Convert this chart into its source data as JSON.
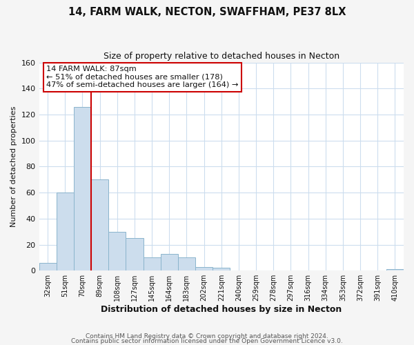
{
  "title": "14, FARM WALK, NECTON, SWAFFHAM, PE37 8LX",
  "subtitle": "Size of property relative to detached houses in Necton",
  "xlabel": "Distribution of detached houses by size in Necton",
  "ylabel": "Number of detached properties",
  "bar_labels": [
    "32sqm",
    "51sqm",
    "70sqm",
    "89sqm",
    "108sqm",
    "127sqm",
    "145sqm",
    "164sqm",
    "183sqm",
    "202sqm",
    "221sqm",
    "240sqm",
    "259sqm",
    "278sqm",
    "297sqm",
    "316sqm",
    "334sqm",
    "353sqm",
    "372sqm",
    "391sqm",
    "410sqm"
  ],
  "bar_values": [
    6,
    60,
    126,
    70,
    30,
    25,
    10,
    13,
    10,
    3,
    2,
    0,
    0,
    0,
    0,
    0,
    0,
    0,
    0,
    0,
    1
  ],
  "bar_color": "#ccdded",
  "bar_edge_color": "#8ab4cc",
  "vline_x": 2.5,
  "vline_color": "#cc0000",
  "ylim": [
    0,
    160
  ],
  "yticks": [
    0,
    20,
    40,
    60,
    80,
    100,
    120,
    140,
    160
  ],
  "annotation_text": "14 FARM WALK: 87sqm\n← 51% of detached houses are smaller (178)\n47% of semi-detached houses are larger (164) →",
  "annotation_box_color": "#ffffff",
  "annotation_box_edge": "#cc0000",
  "footer1": "Contains HM Land Registry data © Crown copyright and database right 2024.",
  "footer2": "Contains public sector information licensed under the Open Government Licence v3.0.",
  "fig_bg_color": "#f5f5f5",
  "plot_bg_color": "#ffffff",
  "grid_color": "#ccddee"
}
